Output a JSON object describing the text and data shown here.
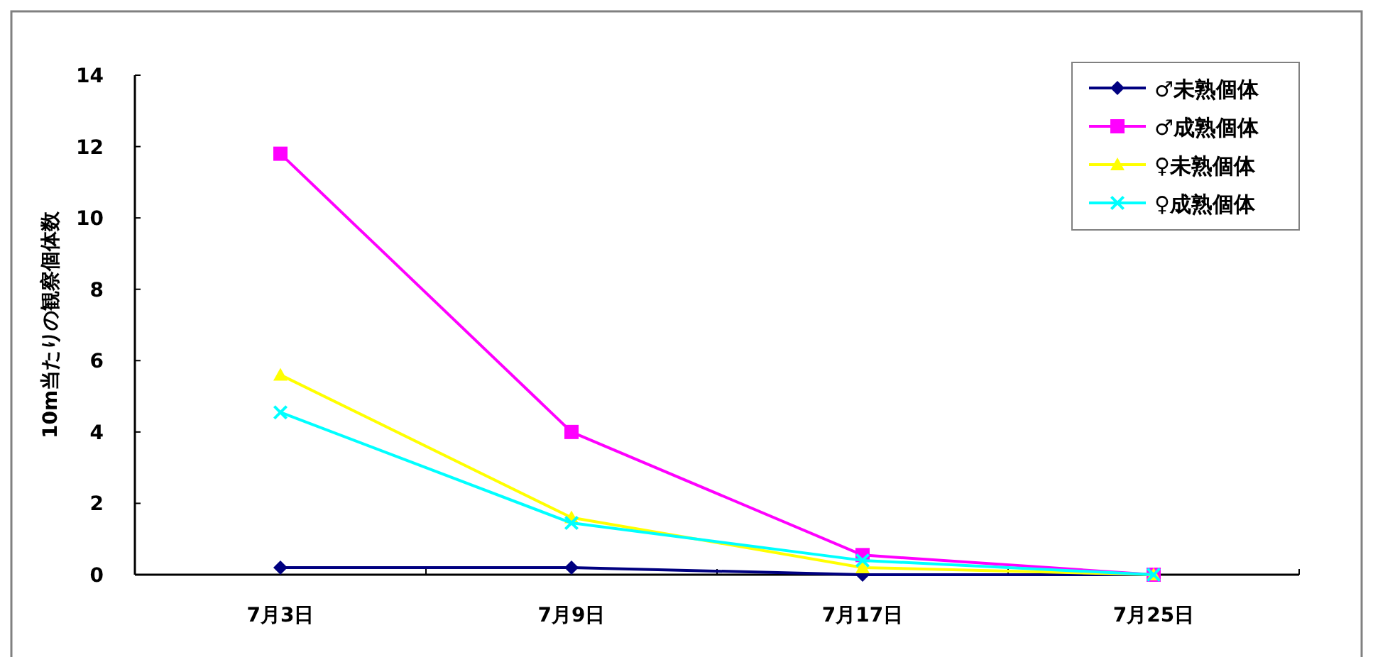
{
  "chart_data": {
    "type": "line",
    "ylabel": "10m当たりの観察個体数",
    "categories": [
      "7月3日",
      "7月9日",
      "7月17日",
      "7月25日"
    ],
    "ylim": [
      0,
      14
    ],
    "yticks": [
      0,
      2,
      4,
      6,
      8,
      10,
      12,
      14
    ],
    "grid": false,
    "legend": "top right",
    "series": [
      {
        "name": "♂未熟個体",
        "color": "#000080",
        "marker": "diamond",
        "values": [
          0.2,
          0.2,
          0.0,
          0.0
        ]
      },
      {
        "name": "♂成熟個体",
        "color": "#ff00ff",
        "marker": "square",
        "values": [
          11.8,
          4.0,
          0.55,
          0.0
        ]
      },
      {
        "name": "♀未熟個体",
        "color": "#ffff00",
        "marker": "triangle",
        "values": [
          5.6,
          1.6,
          0.2,
          0.0
        ]
      },
      {
        "name": "♀成熟個体",
        "color": "#00ffff",
        "marker": "cross",
        "values": [
          4.55,
          1.45,
          0.4,
          0.0
        ]
      }
    ]
  }
}
